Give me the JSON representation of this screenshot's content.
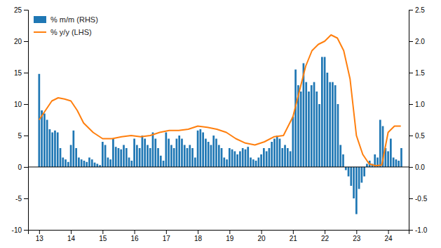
{
  "chart_data": {
    "type": "bar",
    "xlim": [
      12.65,
      24.65
    ],
    "xticks": [
      13,
      14,
      15,
      16,
      17,
      18,
      19,
      20,
      21,
      22,
      23,
      24
    ],
    "ylim": [
      -10,
      25
    ],
    "yticks": [
      -10,
      -5,
      0,
      5,
      10,
      15,
      20,
      25
    ],
    "y2lim": [
      -1.0,
      2.5
    ],
    "y2ticks": [
      {
        "value": -1.0,
        "label": "-1.0"
      },
      -0.5,
      {
        "value": 0.0,
        "label": "0.0"
      },
      0.5,
      {
        "value": 1.0,
        "label": "1.0"
      },
      1.5,
      {
        "value": 2.0,
        "label": "2.0"
      },
      2.5
    ],
    "legend": "upper left",
    "series": [
      {
        "name": "% m/m (RHS)",
        "type": "bar",
        "axis": "y2",
        "x": [
          13.0,
          13.083,
          13.167,
          13.25,
          13.333,
          13.417,
          13.5,
          13.583,
          13.667,
          13.75,
          13.833,
          13.917,
          14.0,
          14.083,
          14.167,
          14.25,
          14.333,
          14.417,
          14.5,
          14.583,
          14.667,
          14.75,
          14.833,
          14.917,
          15.0,
          15.083,
          15.167,
          15.25,
          15.333,
          15.417,
          15.5,
          15.583,
          15.667,
          15.75,
          15.833,
          15.917,
          16.0,
          16.083,
          16.167,
          16.25,
          16.333,
          16.417,
          16.5,
          16.583,
          16.667,
          16.75,
          16.833,
          16.917,
          17.0,
          17.083,
          17.167,
          17.25,
          17.333,
          17.417,
          17.5,
          17.583,
          17.667,
          17.75,
          17.833,
          17.917,
          18.0,
          18.083,
          18.167,
          18.25,
          18.333,
          18.417,
          18.5,
          18.583,
          18.667,
          18.75,
          18.833,
          18.917,
          19.0,
          19.083,
          19.167,
          19.25,
          19.333,
          19.417,
          19.5,
          19.583,
          19.667,
          19.75,
          19.833,
          19.917,
          20.0,
          20.083,
          20.167,
          20.25,
          20.333,
          20.417,
          20.5,
          20.583,
          20.667,
          20.75,
          20.833,
          20.917,
          21.0,
          21.083,
          21.167,
          21.25,
          21.333,
          21.417,
          21.5,
          21.583,
          21.667,
          21.75,
          21.833,
          21.917,
          22.0,
          22.083,
          22.167,
          22.25,
          22.333,
          22.417,
          22.5,
          22.583,
          22.667,
          22.75,
          22.833,
          22.917,
          23.0,
          23.083,
          23.167,
          23.25,
          23.333,
          23.417,
          23.5,
          23.583,
          23.667,
          23.75,
          23.833,
          23.917,
          24.0,
          24.083,
          24.167,
          24.25,
          24.333,
          24.417
        ],
        "values": [
          1.48,
          0.9,
          0.85,
          0.75,
          0.6,
          0.55,
          0.58,
          0.55,
          0.3,
          0.15,
          0.12,
          0.08,
          0.35,
          0.58,
          0.3,
          0.15,
          0.12,
          0.1,
          0.08,
          0.15,
          0.12,
          0.07,
          0.05,
          0.03,
          0.4,
          0.35,
          0.15,
          0.12,
          0.45,
          0.32,
          0.3,
          0.28,
          0.35,
          0.3,
          0.15,
          0.1,
          0.45,
          0.35,
          0.3,
          0.5,
          0.45,
          0.35,
          0.3,
          0.55,
          0.45,
          0.3,
          0.18,
          0.1,
          0.55,
          0.45,
          0.35,
          0.3,
          0.45,
          0.5,
          0.45,
          0.35,
          0.3,
          0.35,
          0.3,
          0.15,
          0.58,
          0.6,
          0.55,
          0.45,
          0.4,
          0.35,
          0.5,
          0.45,
          0.35,
          0.3,
          0.15,
          0.12,
          0.3,
          0.28,
          0.25,
          0.2,
          0.25,
          0.3,
          0.28,
          0.32,
          0.15,
          0.12,
          0.1,
          0.15,
          0.2,
          0.3,
          0.25,
          0.3,
          0.4,
          0.45,
          0.5,
          0.45,
          0.3,
          0.35,
          0.3,
          0.25,
          0.8,
          1.55,
          1.3,
          1.2,
          1.65,
          1.35,
          1.2,
          1.3,
          1.35,
          1.2,
          1.0,
          1.75,
          1.75,
          1.5,
          1.35,
          1.35,
          1.3,
          1.0,
          0.35,
          0.2,
          -0.05,
          -0.15,
          -0.3,
          -0.5,
          -0.75,
          -0.35,
          -0.25,
          -0.15,
          0.05,
          0.1,
          0.05,
          0.2,
          0.15,
          0.75,
          0.65,
          0.3,
          0.25,
          0.45,
          0.15,
          0.12,
          0.1,
          0.3
        ]
      },
      {
        "name": "% y/y (LHS)",
        "type": "line",
        "x": [
          13.0,
          13.2,
          13.4,
          13.6,
          13.8,
          14.0,
          14.2,
          14.4,
          14.7,
          15.0,
          15.3,
          15.6,
          15.9,
          16.2,
          16.5,
          16.8,
          17.1,
          17.4,
          17.7,
          18.0,
          18.3,
          18.6,
          18.9,
          19.2,
          19.5,
          19.8,
          20.1,
          20.4,
          20.7,
          21.0,
          21.2,
          21.4,
          21.6,
          21.8,
          22.0,
          22.2,
          22.4,
          22.6,
          22.8,
          23.0,
          23.2,
          23.4,
          23.6,
          23.8,
          24.0,
          24.2,
          24.4
        ],
        "values": [
          7.5,
          9.0,
          10.5,
          11.0,
          10.8,
          10.5,
          9.0,
          7.0,
          5.5,
          4.5,
          4.5,
          4.8,
          5.0,
          4.8,
          5.0,
          5.5,
          5.8,
          5.8,
          6.0,
          6.5,
          6.3,
          6.0,
          5.5,
          4.5,
          3.8,
          3.5,
          4.0,
          4.8,
          5.0,
          8.0,
          12.0,
          16.0,
          18.5,
          19.5,
          20.0,
          21.0,
          20.5,
          18.5,
          14.0,
          5.0,
          2.0,
          0.5,
          0.2,
          0.3,
          5.5,
          6.5,
          6.5
        ]
      }
    ]
  }
}
